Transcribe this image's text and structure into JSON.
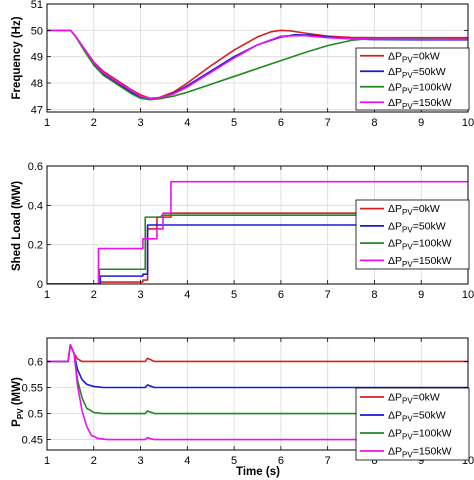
{
  "colors": {
    "pv0": "#d62020",
    "pv50": "#1a1ad6",
    "pv100": "#1f8a1f",
    "pv150": "#ee10ee",
    "grid": "#d9d9d9",
    "axis": "#000000"
  },
  "chart_data": [
    {
      "type": "line",
      "ylabel": "Frequency (Hz)",
      "xlim": [
        1,
        10
      ],
      "ylim": [
        46.9,
        51
      ],
      "xticks": [
        "1",
        "2",
        "3",
        "4",
        "5",
        "6",
        "7",
        "8",
        "9",
        "10"
      ],
      "yticks": [
        "47",
        "48",
        "49",
        "50",
        "51"
      ],
      "ytick_values": [
        47,
        48,
        49,
        50,
        51
      ],
      "grid": true,
      "legend_position": "right",
      "legend": [
        {
          "prefix": "ΔP",
          "sub": "PV",
          "suffix": "=0kW",
          "color": "#d62020"
        },
        {
          "prefix": "ΔP",
          "sub": "PV",
          "suffix": "=50kW",
          "color": "#1a1ad6"
        },
        {
          "prefix": "ΔP",
          "sub": "PV",
          "suffix": "=100kW",
          "color": "#1f8a1f"
        },
        {
          "prefix": "ΔP",
          "sub": "PV",
          "suffix": "=150kW",
          "color": "#ee10ee"
        }
      ],
      "series": [
        {
          "name": "ΔPPV=0kW",
          "color": "#d62020",
          "x": [
            1,
            1.5,
            1.6,
            1.8,
            2.0,
            2.2,
            2.5,
            2.8,
            3.0,
            3.2,
            3.4,
            3.7,
            4.0,
            4.5,
            5.0,
            5.5,
            5.8,
            6.0,
            6.2,
            6.5,
            7.0,
            7.5,
            8.0,
            9.0,
            10
          ],
          "y": [
            50,
            50,
            49.8,
            49.3,
            48.8,
            48.45,
            48.1,
            47.75,
            47.55,
            47.42,
            47.45,
            47.65,
            48.0,
            48.65,
            49.25,
            49.75,
            49.95,
            50.0,
            49.98,
            49.9,
            49.78,
            49.73,
            49.72,
            49.72,
            49.72
          ]
        },
        {
          "name": "ΔPPV=50kW",
          "color": "#1a1ad6",
          "x": [
            1,
            1.5,
            1.6,
            1.8,
            2.0,
            2.2,
            2.5,
            2.8,
            3.0,
            3.2,
            3.4,
            3.7,
            4.0,
            4.5,
            5.0,
            5.5,
            6.0,
            6.3,
            6.6,
            7.0,
            7.5,
            8.0,
            9.0,
            10
          ],
          "y": [
            50,
            50,
            49.8,
            49.25,
            48.72,
            48.35,
            48.0,
            47.65,
            47.45,
            47.38,
            47.42,
            47.6,
            47.9,
            48.45,
            49.0,
            49.45,
            49.75,
            49.83,
            49.82,
            49.75,
            49.68,
            49.65,
            49.64,
            49.64
          ]
        },
        {
          "name": "ΔPPV=100kW",
          "color": "#1f8a1f",
          "x": [
            1,
            1.5,
            1.6,
            1.8,
            2.0,
            2.2,
            2.5,
            2.8,
            3.0,
            3.2,
            3.4,
            3.7,
            4.0,
            4.5,
            5.0,
            5.5,
            6.0,
            6.5,
            7.0,
            7.5,
            8.0,
            8.5,
            9.0,
            10
          ],
          "y": [
            50,
            50,
            49.8,
            49.22,
            48.68,
            48.3,
            47.95,
            47.6,
            47.42,
            47.37,
            47.4,
            47.5,
            47.65,
            47.95,
            48.25,
            48.55,
            48.85,
            49.15,
            49.42,
            49.62,
            49.7,
            49.7,
            49.68,
            49.66
          ]
        },
        {
          "name": "ΔPPV=150kW",
          "color": "#ee10ee",
          "x": [
            1,
            1.5,
            1.6,
            1.8,
            2.0,
            2.2,
            2.5,
            2.8,
            3.0,
            3.2,
            3.4,
            3.7,
            4.0,
            4.5,
            5.0,
            5.5,
            6.0,
            6.5,
            7.0,
            7.5,
            8.0,
            9.0,
            10
          ],
          "y": [
            50,
            50,
            49.8,
            49.3,
            48.78,
            48.4,
            48.05,
            47.72,
            47.5,
            47.42,
            47.44,
            47.58,
            47.85,
            48.4,
            48.95,
            49.45,
            49.78,
            49.8,
            49.72,
            49.68,
            49.67,
            49.66,
            49.66
          ]
        }
      ]
    },
    {
      "type": "line",
      "ylabel": "Shed Load (MW)",
      "xlim": [
        1,
        10
      ],
      "ylim": [
        0,
        0.6
      ],
      "xticks": [
        "1",
        "2",
        "3",
        "4",
        "5",
        "6",
        "7",
        "8",
        "9",
        "10"
      ],
      "yticks": [
        "0",
        "0.2",
        "0.4",
        "0.6"
      ],
      "ytick_values": [
        0,
        0.2,
        0.4,
        0.6
      ],
      "grid": true,
      "legend_position": "bottom-right",
      "legend": [
        {
          "prefix": "ΔP",
          "sub": "PV",
          "suffix": "=0kW",
          "color": "#d62020"
        },
        {
          "prefix": "ΔP",
          "sub": "PV",
          "suffix": "=50kW",
          "color": "#1a1ad6"
        },
        {
          "prefix": "ΔP",
          "sub": "PV",
          "suffix": "=100kW",
          "color": "#1f8a1f"
        },
        {
          "prefix": "ΔP",
          "sub": "PV",
          "suffix": "=150kW",
          "color": "#ee10ee"
        }
      ],
      "series": [
        {
          "name": "ΔPPV=0kW",
          "color": "#d62020",
          "x": [
            1,
            2.14,
            2.14,
            3.05,
            3.05,
            3.15,
            3.15,
            3.35,
            3.35,
            3.65,
            3.65,
            10
          ],
          "y": [
            0,
            0,
            0.01,
            0.01,
            0.02,
            0.02,
            0.28,
            0.28,
            0.34,
            0.34,
            0.36,
            0.36
          ]
        },
        {
          "name": "ΔPPV=50kW",
          "color": "#1a1ad6",
          "x": [
            1,
            2.14,
            2.14,
            3.05,
            3.05,
            3.15,
            3.15,
            10
          ],
          "y": [
            0,
            0,
            0.04,
            0.04,
            0.05,
            0.05,
            0.3,
            0.3
          ]
        },
        {
          "name": "ΔPPV=100kW",
          "color": "#1f8a1f",
          "x": [
            1,
            2.12,
            2.12,
            3.0,
            3.0,
            3.1,
            3.1,
            3.45,
            3.45,
            10
          ],
          "y": [
            0,
            0,
            0.075,
            0.075,
            0.075,
            0.075,
            0.34,
            0.34,
            0.35,
            0.35
          ]
        },
        {
          "name": "ΔPPV=150kW",
          "color": "#ee10ee",
          "x": [
            1,
            2.1,
            2.1,
            3.0,
            3.0,
            3.05,
            3.05,
            3.35,
            3.35,
            3.48,
            3.48,
            3.65,
            3.65,
            10
          ],
          "y": [
            0,
            0,
            0.18,
            0.18,
            0.18,
            0.18,
            0.23,
            0.23,
            0.28,
            0.28,
            0.36,
            0.36,
            0.52,
            0.52
          ]
        }
      ]
    },
    {
      "type": "line",
      "ylabel_prefix": "P",
      "ylabel_sub": "PV",
      "ylabel_suffix": " (MW)",
      "xlabel": "Time (s)",
      "xlim": [
        1,
        10
      ],
      "ylim": [
        0.43,
        0.645
      ],
      "xticks": [
        "1",
        "2",
        "3",
        "4",
        "5",
        "6",
        "7",
        "8",
        "9",
        "10"
      ],
      "yticks": [
        "0.45",
        "0.5",
        "0.55",
        "0.6"
      ],
      "ytick_values": [
        0.45,
        0.5,
        0.55,
        0.6
      ],
      "grid": true,
      "legend_position": "right",
      "legend": [
        {
          "prefix": "ΔP",
          "sub": "PV",
          "suffix": "=0kW",
          "color": "#d62020"
        },
        {
          "prefix": "ΔP",
          "sub": "PV",
          "suffix": "=50kW",
          "color": "#1a1ad6"
        },
        {
          "prefix": "ΔP",
          "sub": "PV",
          "suffix": "=100kW",
          "color": "#1f8a1f"
        },
        {
          "prefix": "ΔP",
          "sub": "PV",
          "suffix": "=150kW",
          "color": "#ee10ee"
        }
      ],
      "series": [
        {
          "name": "ΔPPV=0kW",
          "color": "#d62020",
          "x": [
            1,
            1.45,
            1.5,
            1.58,
            1.65,
            1.75,
            2.0,
            3.1,
            3.15,
            3.2,
            3.3,
            10
          ],
          "y": [
            0.6,
            0.6,
            0.632,
            0.615,
            0.605,
            0.6,
            0.6,
            0.6,
            0.606,
            0.604,
            0.6,
            0.6
          ]
        },
        {
          "name": "ΔPPV=50kW",
          "color": "#1a1ad6",
          "x": [
            1,
            1.45,
            1.5,
            1.58,
            1.65,
            1.75,
            1.85,
            2.0,
            2.2,
            3.1,
            3.15,
            3.2,
            3.3,
            10
          ],
          "y": [
            0.6,
            0.6,
            0.632,
            0.615,
            0.585,
            0.565,
            0.556,
            0.552,
            0.55,
            0.55,
            0.555,
            0.553,
            0.55,
            0.55
          ]
        },
        {
          "name": "ΔPPV=100kW",
          "color": "#1f8a1f",
          "x": [
            1,
            1.45,
            1.5,
            1.58,
            1.65,
            1.75,
            1.85,
            2.0,
            2.2,
            3.1,
            3.15,
            3.2,
            3.3,
            10
          ],
          "y": [
            0.6,
            0.6,
            0.632,
            0.615,
            0.565,
            0.53,
            0.51,
            0.502,
            0.5,
            0.5,
            0.505,
            0.503,
            0.5,
            0.5
          ]
        },
        {
          "name": "ΔPPV=150kW",
          "color": "#ee10ee",
          "x": [
            1,
            1.45,
            1.5,
            1.58,
            1.65,
            1.75,
            1.85,
            1.95,
            2.1,
            2.3,
            3.1,
            3.15,
            3.2,
            3.3,
            10
          ],
          "y": [
            0.6,
            0.6,
            0.632,
            0.615,
            0.555,
            0.505,
            0.475,
            0.458,
            0.452,
            0.45,
            0.45,
            0.454,
            0.452,
            0.45,
            0.45
          ]
        }
      ]
    }
  ]
}
